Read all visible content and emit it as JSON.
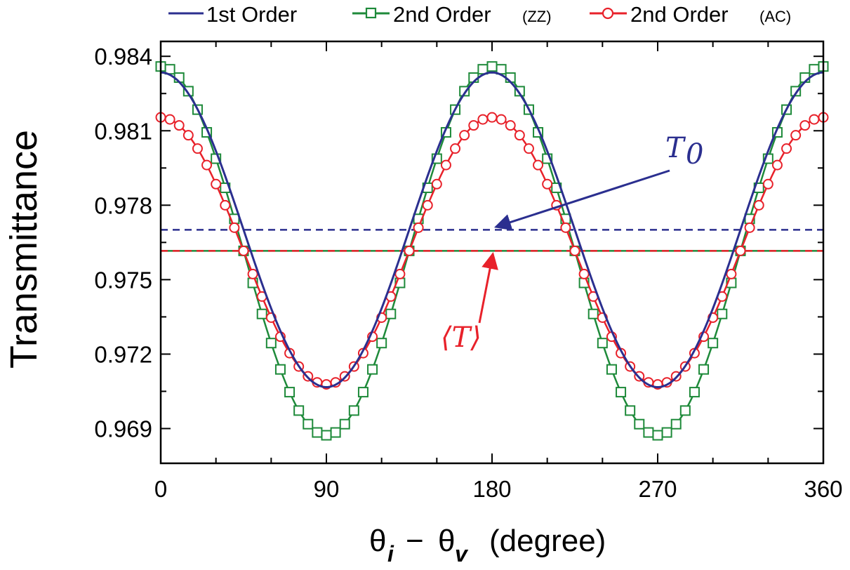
{
  "chart_data": {
    "type": "line",
    "title": "",
    "xlabel": {
      "theta_left": "θ",
      "sub_left": "i",
      "minus": "−",
      "theta_right": "θ",
      "sub_right": "v",
      "unit": "(degree)"
    },
    "ylabel": "Transmittance",
    "xlim": [
      0,
      360
    ],
    "ylim": [
      0.9676,
      0.9846
    ],
    "xticks": [
      0,
      90,
      180,
      270,
      360
    ],
    "xtick_labels": [
      "0",
      "90",
      "180",
      "270",
      "360"
    ],
    "yticks": [
      0.969,
      0.972,
      0.975,
      0.978,
      0.981,
      0.984
    ],
    "ytick_labels": [
      "0.969",
      "0.972",
      "0.975",
      "0.978",
      "0.981",
      "0.984"
    ],
    "legend_position": "top",
    "grid": false,
    "series": [
      {
        "name": "1st Order",
        "name_suffix": "",
        "style": "solid-line",
        "color": "#2b2f8f",
        "mean": 0.97701,
        "amplitude": 0.00634,
        "x_step": 5,
        "x_range": [
          0,
          360
        ]
      },
      {
        "name": "2nd Order",
        "name_suffix": "(ZZ)",
        "style": "line-square-markers",
        "color": "#1e8a3a",
        "mean": 0.97616,
        "amplitude": 0.00743,
        "x_step": 5,
        "x_range": [
          0,
          360
        ]
      },
      {
        "name": "2nd Order",
        "name_suffix": "(AC)",
        "style": "line-circle-markers",
        "color": "#e8212a",
        "mean": 0.97616,
        "amplitude": 0.00538,
        "x_step": 5,
        "x_range": [
          0,
          360
        ]
      }
    ],
    "reference_lines": [
      {
        "value": 0.97701,
        "style": "dashed",
        "color": "#2b2f8f"
      },
      {
        "value": 0.97616,
        "style": "solid",
        "color": "#1e8a3a"
      },
      {
        "value": 0.97616,
        "style": "dashed",
        "color": "#e8212a"
      }
    ],
    "annotations": [
      {
        "main": "T",
        "sub": "0",
        "color": "#2b2f8f",
        "points_to": {
          "x": 182,
          "y": 0.97701
        }
      },
      {
        "main": "⟨T⟩",
        "sub": "",
        "color": "#e8212a",
        "points_to": {
          "x": 182,
          "y": 0.97616
        }
      }
    ]
  }
}
